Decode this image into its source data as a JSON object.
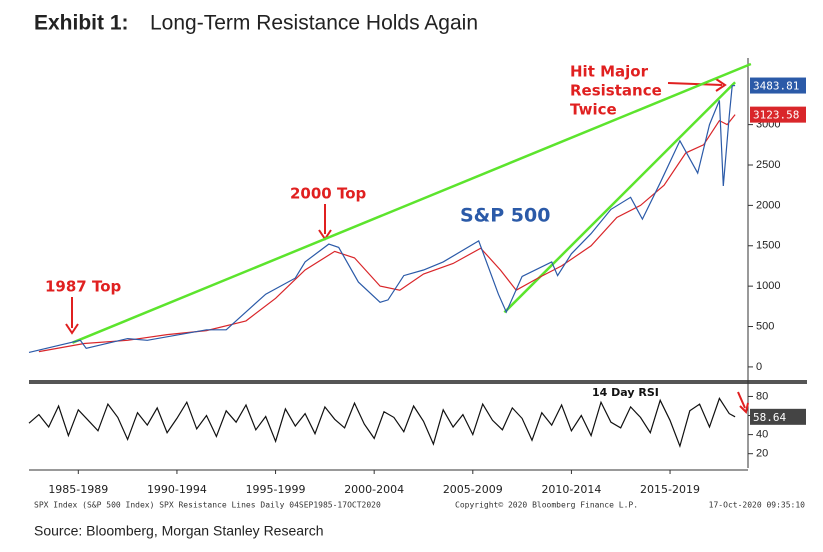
{
  "header": {
    "label": "Exhibit 1:",
    "title": "Long-Term Resistance Holds Again"
  },
  "chart_data": [
    {
      "type": "line",
      "annotations": {
        "top1987": "1987 Top",
        "top2000": "2000 Top",
        "resistance": [
          "Hit Major",
          "Resistance",
          "Twice"
        ],
        "series_label": "S&P 500"
      },
      "xlim": [
        1985,
        2021.3
      ],
      "ylim": [
        -125,
        3800
      ],
      "yticks": [
        0,
        500,
        1000,
        1500,
        2000,
        2500,
        3000
      ],
      "grid": false,
      "series": [
        {
          "color": "#5ce42d",
          "x": [
            1987.2,
            2021.6
          ],
          "values": [
            300,
            3750
          ]
        },
        {
          "color": "#5ce42d",
          "x": [
            2009.1,
            2020.8
          ],
          "values": [
            675,
            3525
          ]
        },
        {
          "color": "#d9262a",
          "x": [
            1985.5,
            1987.8,
            1990,
            1992,
            1994,
            1996,
            1997.5,
            1999,
            2000.5,
            2001.5,
            2002.8,
            2003.8,
            2005,
            2006.5,
            2007.9,
            2008.9,
            2009.7,
            2010.8,
            2012,
            2013.5,
            2014.8,
            2016,
            2017.2,
            2018.3,
            2019.2,
            2020,
            2020.4,
            2020.8
          ],
          "values": [
            190,
            290,
            330,
            400,
            450,
            570,
            850,
            1200,
            1430,
            1350,
            1000,
            950,
            1150,
            1280,
            1470,
            1200,
            950,
            1100,
            1250,
            1500,
            1850,
            2000,
            2250,
            2650,
            2750,
            3050,
            3000,
            3123.58
          ]
        },
        {
          "color": "#2b5aa8",
          "x": [
            1985,
            1987.6,
            1987.9,
            1990,
            1991,
            1994,
            1995,
            1997,
            1998.5,
            1999,
            2000.2,
            2000.7,
            2001.7,
            2002.8,
            2003.2,
            2004,
            2005,
            2006,
            2007.8,
            2008.8,
            2009.2,
            2010,
            2011.5,
            2011.8,
            2012.5,
            2013.5,
            2014.5,
            2015.5,
            2016.1,
            2017,
            2018,
            2018.9,
            2019.5,
            2020,
            2020.2,
            2020.5,
            2020.65,
            2020.8
          ],
          "values": [
            180,
            330,
            230,
            350,
            330,
            460,
            460,
            900,
            1100,
            1300,
            1520,
            1480,
            1050,
            800,
            830,
            1130,
            1200,
            1300,
            1560,
            900,
            680,
            1120,
            1300,
            1130,
            1400,
            1650,
            1950,
            2100,
            1830,
            2280,
            2800,
            2400,
            3000,
            3300,
            2240,
            3100,
            3480,
            3483.81
          ]
        }
      ]
    },
    {
      "type": "line",
      "title": "14 Day RSI",
      "xlim": [
        1985,
        2021.3
      ],
      "xticks": [
        {
          "value": 1987.5,
          "label": "1985-1989"
        },
        {
          "value": 1992.5,
          "label": "1990-1994"
        },
        {
          "value": 1997.5,
          "label": "1995-1999"
        },
        {
          "value": 2002.5,
          "label": "2000-2004"
        },
        {
          "value": 2007.5,
          "label": "2005-2009"
        },
        {
          "value": 2012.5,
          "label": "2010-2014"
        },
        {
          "value": 2017.5,
          "label": "2015-2019"
        }
      ],
      "ylim": [
        5,
        92
      ],
      "yticks": [
        20,
        40,
        60,
        80
      ],
      "series": [
        {
          "color": "#111111",
          "x": [
            1985,
            1985.5,
            1986,
            1986.5,
            1987,
            1987.5,
            1988,
            1988.5,
            1989,
            1989.5,
            1990,
            1990.5,
            1991,
            1991.5,
            1992,
            1992.5,
            1993,
            1993.5,
            1994,
            1994.5,
            1995,
            1995.5,
            1996,
            1996.5,
            1997,
            1997.5,
            1998,
            1998.5,
            1999,
            1999.5,
            2000,
            2000.5,
            2001,
            2001.5,
            2002,
            2002.5,
            2003,
            2003.5,
            2004,
            2004.5,
            2005,
            2005.5,
            2006,
            2006.5,
            2007,
            2007.5,
            2008,
            2008.5,
            2009,
            2009.5,
            2010,
            2010.5,
            2011,
            2011.5,
            2012,
            2012.5,
            2013,
            2013.5,
            2014,
            2014.5,
            2015,
            2015.5,
            2016,
            2016.5,
            2017,
            2017.5,
            2018,
            2018.5,
            2019,
            2019.5,
            2020,
            2020.5,
            2020.8
          ],
          "values": [
            52,
            61,
            48,
            70,
            39,
            66,
            55,
            44,
            72,
            58,
            35,
            63,
            50,
            68,
            42,
            57,
            74,
            46,
            60,
            38,
            65,
            53,
            71,
            45,
            59,
            33,
            67,
            49,
            62,
            41,
            69,
            56,
            47,
            73,
            51,
            36,
            64,
            58,
            43,
            70,
            54,
            30,
            66,
            48,
            61,
            40,
            72,
            55,
            45,
            68,
            57,
            34,
            63,
            50,
            71,
            44,
            60,
            39,
            74,
            53,
            47,
            69,
            58,
            42,
            76,
            55,
            28,
            65,
            72,
            48,
            78,
            62,
            58.64
          ]
        }
      ]
    }
  ],
  "footer": {
    "left": "SPX Index (S&P 500 Index) SPX Resistance Lines  Daily 04SEP1985-17OCT2020",
    "center": "Copyright© 2020 Bloomberg Finance L.P.",
    "right": "17-Oct-2020 09:35:10"
  },
  "source": "Source: Bloomberg, Morgan Stanley Research"
}
